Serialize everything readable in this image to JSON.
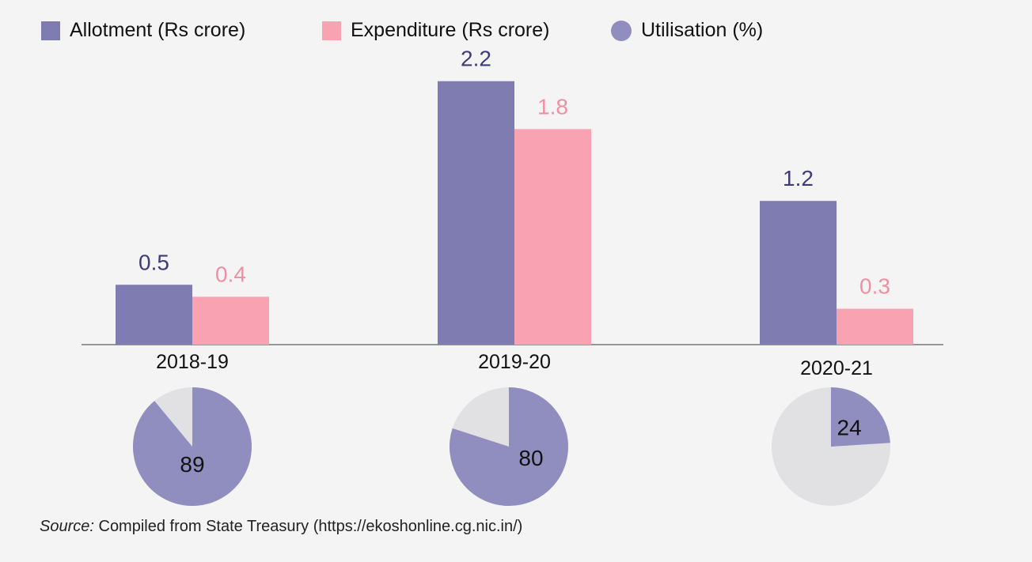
{
  "legend": [
    {
      "label": "Allotment (Rs crore)",
      "color": "#7f7cb2",
      "shape": "square"
    },
    {
      "label": "Expenditure (Rs crore)",
      "color": "#f9a3b2",
      "shape": "square"
    },
    {
      "label": "Utilisation (%)",
      "color": "#908dbf",
      "shape": "circle"
    }
  ],
  "chart_data": [
    {
      "type": "bar",
      "categories": [
        "2018-19",
        "2019-20",
        "2020-21"
      ],
      "series": [
        {
          "name": "Allotment (Rs crore)",
          "values": [
            0.5,
            2.2,
            1.2
          ],
          "color": "#7f7cb2",
          "label_color": "#3f3b7a"
        },
        {
          "name": "Expenditure (Rs crore)",
          "values": [
            0.4,
            1.8,
            0.3
          ],
          "color": "#f9a3b2",
          "label_color": "#f28ea2"
        }
      ],
      "grid": false,
      "legend": "top-left"
    },
    {
      "type": "pie",
      "categories": [
        "2018-19",
        "2019-20",
        "2020-21"
      ],
      "values": [
        89,
        80,
        24
      ],
      "max": 100,
      "fill_color": "#908dbf",
      "rest_color": "#e1e1e3"
    }
  ],
  "source": {
    "label": "Source:",
    "text": " Compiled from State Treasury (https://ekoshonline.cg.nic.in/)"
  }
}
